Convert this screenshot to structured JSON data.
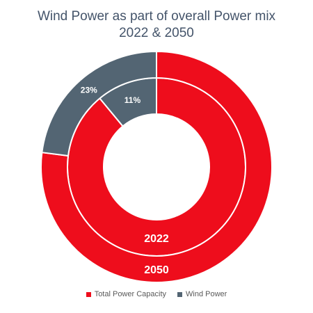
{
  "chart_data": {
    "type": "donut",
    "title_lines": [
      "Wind Power as part of overall Power mix",
      "2022 & 2050"
    ],
    "series": [
      {
        "name": "2022",
        "slices": [
          {
            "category": "Total Power Capacity",
            "value": 89
          },
          {
            "category": "Wind Power",
            "value": 11,
            "label": "11%"
          }
        ]
      },
      {
        "name": "2050",
        "slices": [
          {
            "category": "Total Power Capacity",
            "value": 77
          },
          {
            "category": "Wind Power",
            "value": 23,
            "label": "23%"
          }
        ]
      }
    ],
    "legend": [
      {
        "name": "Total Power Capacity",
        "color": "#ee0d1c"
      },
      {
        "name": "Wind Power",
        "color": "#536573"
      }
    ],
    "legend_position": "bottom"
  }
}
